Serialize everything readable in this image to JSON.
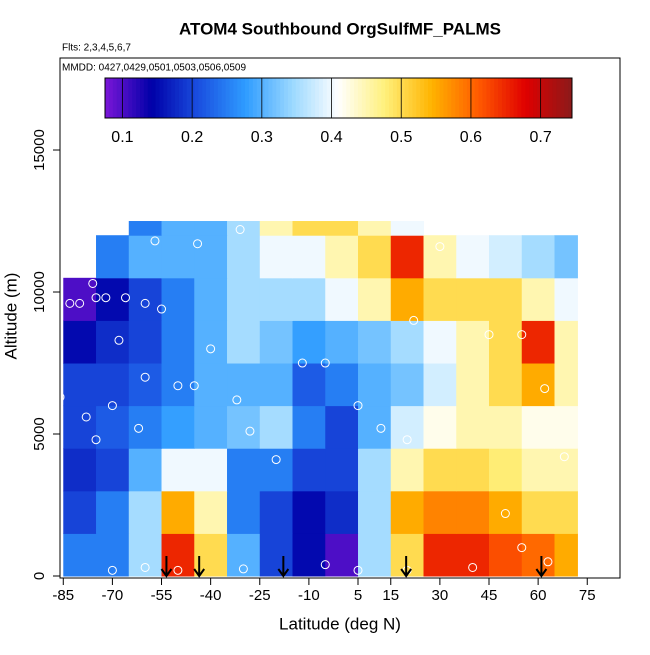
{
  "chart_data": {
    "type": "heatmap",
    "title": "ATOM4 Southbound OrgSulfMF_PALMS",
    "subtitle": "Flts: 2,3,4,5,6,7",
    "annotation": "MMDD: 0427,0429,0501,0503,0506,0509",
    "x_label": "Latitude (deg N)",
    "y_label": "Altitude (m)",
    "xlim": [
      -86,
      85
    ],
    "ylim": [
      -70,
      18240
    ],
    "xticks": [
      -85,
      -70,
      -55,
      -40,
      -25,
      -10,
      5,
      15,
      30,
      45,
      60,
      75
    ],
    "yticks": [
      0,
      5000,
      10000,
      15000
    ],
    "lat_edges": [
      -85,
      -75,
      -65,
      -55,
      -45,
      -35,
      -25,
      -15,
      -5,
      5,
      15,
      25,
      35,
      45,
      55,
      65,
      72
    ],
    "alt_edges": [
      0,
      1500,
      3000,
      4500,
      6000,
      7500,
      9000,
      10500,
      12000,
      12500
    ],
    "z": [
      [
        0.25,
        0.25,
        0.35,
        0.65,
        0.5,
        0.3,
        0.2,
        0.15,
        0.1,
        0.35,
        0.5,
        0.65,
        0.65,
        0.62,
        0.6,
        0.55
      ],
      [
        0.2,
        0.25,
        0.35,
        0.55,
        0.45,
        0.25,
        0.2,
        0.15,
        0.18,
        0.35,
        0.55,
        0.58,
        0.58,
        0.55,
        0.5,
        0.5
      ],
      [
        0.18,
        0.2,
        0.3,
        0.4,
        0.4,
        0.25,
        0.25,
        0.2,
        0.2,
        0.35,
        0.45,
        0.5,
        0.5,
        0.48,
        0.45,
        0.45
      ],
      [
        0.2,
        0.22,
        0.25,
        0.28,
        0.3,
        0.32,
        0.35,
        0.25,
        0.2,
        0.3,
        0.38,
        0.42,
        0.45,
        0.45,
        0.42,
        0.42
      ],
      [
        0.2,
        0.2,
        0.22,
        0.25,
        0.3,
        0.3,
        0.3,
        0.22,
        0.25,
        0.3,
        0.32,
        0.38,
        0.45,
        0.5,
        0.55,
        0.45
      ],
      [
        0.15,
        0.18,
        0.2,
        0.25,
        0.3,
        0.35,
        0.32,
        0.28,
        0.3,
        0.32,
        0.35,
        0.4,
        0.45,
        0.5,
        0.65,
        0.45
      ],
      [
        0.1,
        0.15,
        0.2,
        0.25,
        0.3,
        0.35,
        0.35,
        0.35,
        0.4,
        0.45,
        0.55,
        0.5,
        0.5,
        0.5,
        0.45,
        0.4
      ],
      [
        null,
        0.25,
        0.3,
        0.3,
        0.3,
        0.35,
        0.4,
        0.4,
        0.45,
        0.5,
        0.65,
        0.45,
        0.4,
        0.38,
        0.35,
        0.32
      ],
      [
        null,
        null,
        0.25,
        0.3,
        0.3,
        0.35,
        0.45,
        0.5,
        0.5,
        0.45,
        0.4,
        null,
        null,
        null,
        null,
        null
      ]
    ],
    "colorscale": [
      "#7b16d8",
      "#0000a8",
      "#1a4fe0",
      "#2e9bff",
      "#9ad8ff",
      "#ffffff",
      "#fff07a",
      "#ffb300",
      "#ff5a00",
      "#e00000",
      "#8b1a1a"
    ],
    "color_lim": [
      0.075,
      0.745
    ],
    "color_ticks": [
      0.1,
      0.2,
      0.3,
      0.4,
      0.5,
      0.6,
      0.7
    ],
    "points": {
      "lat": [
        -86,
        -83,
        -80,
        -76,
        -75,
        -72,
        -66,
        -60,
        -55,
        -68,
        -60,
        -70,
        -78,
        -75,
        -62,
        -50,
        -45,
        -32,
        -28,
        -20,
        -40,
        -44,
        -57,
        -31,
        -12,
        -5,
        5,
        12,
        20,
        30,
        22,
        45,
        55,
        62,
        68,
        -50,
        -70,
        -60,
        -30,
        -5,
        5,
        20,
        50,
        55,
        63,
        40
      ],
      "alt": [
        6300,
        9600,
        9600,
        10300,
        9800,
        9800,
        9800,
        9600,
        9400,
        8300,
        7000,
        6000,
        5600,
        4800,
        5200,
        6700,
        6700,
        6200,
        5100,
        4100,
        8000,
        11700,
        11800,
        12200,
        7500,
        7500,
        6000,
        5200,
        4800,
        11600,
        9000,
        8500,
        8500,
        6600,
        4200,
        200,
        200,
        300,
        250,
        400,
        200,
        200,
        2200,
        1000,
        500,
        300
      ]
    },
    "arrows_lat": [
      -53.5,
      -43.5,
      -17.8,
      19.7,
      61
    ]
  }
}
